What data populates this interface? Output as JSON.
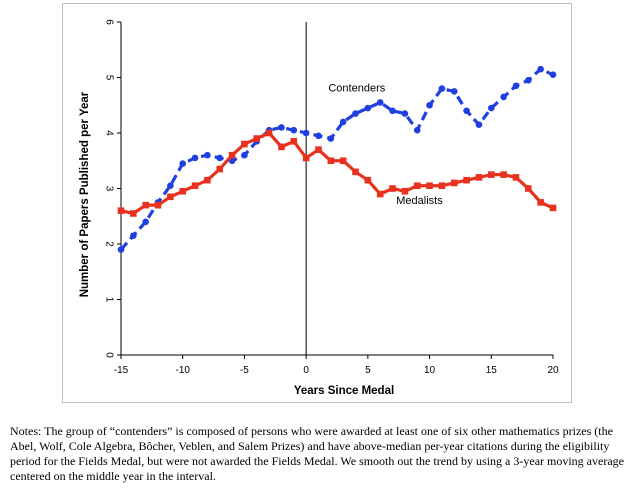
{
  "chart_data": {
    "type": "line",
    "title": "",
    "xlabel": "Years Since Medal",
    "ylabel": "Number of Papers Published per Year",
    "xlim": [
      -15,
      20
    ],
    "ylim": [
      0,
      6
    ],
    "x_ticks": [
      "-15",
      "-10",
      "-5",
      "0",
      "5",
      "10",
      "15",
      "20"
    ],
    "y_ticks": [
      "0",
      "1",
      "2",
      "3",
      "4",
      "5",
      "6"
    ],
    "grid": false,
    "legend": "inline labels",
    "reference_line_x": 0,
    "x": [
      -15,
      -14,
      -13,
      -12,
      -11,
      -10,
      -9,
      -8,
      -7,
      -6,
      -5,
      -4,
      -3,
      -2,
      -1,
      0,
      1,
      2,
      3,
      4,
      5,
      6,
      7,
      8,
      9,
      10,
      11,
      12,
      13,
      14,
      15,
      16,
      17,
      18,
      19,
      20
    ],
    "series": [
      {
        "name": "Contenders",
        "color": "#1f3fe0",
        "style": "dashed",
        "values": [
          1.9,
          2.15,
          2.4,
          2.75,
          3.05,
          3.45,
          3.55,
          3.6,
          3.55,
          3.5,
          3.6,
          3.85,
          4.05,
          4.1,
          4.05,
          4.0,
          3.95,
          3.9,
          4.2,
          4.35,
          4.45,
          4.55,
          4.4,
          4.35,
          4.05,
          4.5,
          4.8,
          4.75,
          4.4,
          4.15,
          4.45,
          4.65,
          4.85,
          4.95,
          5.15,
          5.05
        ]
      },
      {
        "name": "Medalists",
        "color": "#e8321f",
        "style": "solid",
        "values": [
          2.6,
          2.55,
          2.7,
          2.7,
          2.85,
          2.95,
          3.05,
          3.15,
          3.35,
          3.6,
          3.8,
          3.9,
          4.0,
          3.75,
          3.85,
          3.55,
          3.7,
          3.5,
          3.5,
          3.3,
          3.15,
          2.9,
          3.0,
          2.95,
          3.05,
          3.05,
          3.05,
          3.1,
          3.15,
          3.2,
          3.25,
          3.25,
          3.2,
          3.0,
          2.75,
          2.65
        ]
      }
    ]
  },
  "notes": "Notes: The group of “contenders” is composed of persons who were awarded at least one of six other mathematics prizes (the Abel, Wolf, Cole Algebra, Bôcher, Veblen, and Salem Prizes) and have above-median per-year citations during the eligibility period for the Fields Medal, but were not awarded the Fields Medal. We smooth out the trend by using a 3-year moving average centered on the middle year in the interval."
}
